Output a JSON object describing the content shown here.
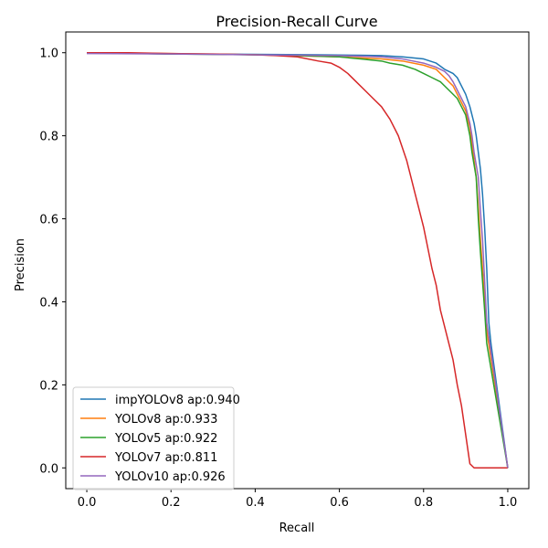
{
  "chart_data": {
    "type": "line",
    "title": "Precision-Recall Curve",
    "xlabel": "Recall",
    "ylabel": "Precision",
    "xlim": [
      -0.05,
      1.05
    ],
    "ylim": [
      -0.05,
      1.05
    ],
    "xticks": [
      0.0,
      0.2,
      0.4,
      0.6,
      0.8,
      1.0
    ],
    "xtick_labels": [
      "0.0",
      "0.2",
      "0.4",
      "0.6",
      "0.8",
      "1.0"
    ],
    "yticks": [
      0.0,
      0.2,
      0.4,
      0.6,
      0.8,
      1.0
    ],
    "ytick_labels": [
      "0.0",
      "0.2",
      "0.4",
      "0.6",
      "0.8",
      "1.0"
    ],
    "grid": false,
    "legend_position": "lower-left",
    "series": [
      {
        "name": "impYOLOv8 ap:0.940",
        "color": "#1f77b4",
        "x": [
          0.0,
          0.2,
          0.4,
          0.55,
          0.65,
          0.7,
          0.75,
          0.8,
          0.83,
          0.85,
          0.87,
          0.88,
          0.89,
          0.9,
          0.91,
          0.92,
          0.925,
          0.93,
          0.935,
          0.94,
          0.945,
          0.95,
          0.955,
          0.96,
          1.0
        ],
        "y": [
          1.0,
          0.997,
          0.996,
          0.995,
          0.994,
          0.993,
          0.99,
          0.985,
          0.975,
          0.96,
          0.95,
          0.94,
          0.92,
          0.9,
          0.87,
          0.83,
          0.8,
          0.76,
          0.72,
          0.66,
          0.58,
          0.48,
          0.35,
          0.3,
          0.0
        ]
      },
      {
        "name": "YOLOv8 ap:0.933",
        "color": "#ff7f0e",
        "x": [
          0.0,
          0.2,
          0.4,
          0.6,
          0.7,
          0.75,
          0.8,
          0.83,
          0.85,
          0.87,
          0.88,
          0.89,
          0.9,
          0.91,
          0.915,
          0.92,
          0.925,
          0.93,
          0.935,
          0.94,
          0.945,
          0.95,
          1.0
        ],
        "y": [
          1.0,
          0.998,
          0.995,
          0.99,
          0.985,
          0.98,
          0.97,
          0.96,
          0.94,
          0.92,
          0.9,
          0.88,
          0.86,
          0.82,
          0.78,
          0.74,
          0.7,
          0.63,
          0.55,
          0.48,
          0.4,
          0.33,
          0.0
        ]
      },
      {
        "name": "YOLOv5 ap:0.922",
        "color": "#2ca02c",
        "x": [
          0.0,
          0.2,
          0.4,
          0.5,
          0.6,
          0.65,
          0.7,
          0.72,
          0.75,
          0.78,
          0.8,
          0.82,
          0.84,
          0.86,
          0.88,
          0.89,
          0.9,
          0.91,
          0.915,
          0.92,
          0.925,
          0.93,
          0.935,
          0.94,
          0.945,
          0.95,
          1.0
        ],
        "y": [
          1.0,
          0.997,
          0.995,
          0.993,
          0.99,
          0.985,
          0.98,
          0.975,
          0.97,
          0.96,
          0.95,
          0.94,
          0.93,
          0.91,
          0.89,
          0.87,
          0.85,
          0.8,
          0.76,
          0.73,
          0.7,
          0.6,
          0.52,
          0.45,
          0.38,
          0.3,
          0.0
        ]
      },
      {
        "name": "YOLOv7 ap:0.811",
        "color": "#d62728",
        "x": [
          0.0,
          0.1,
          0.2,
          0.3,
          0.35,
          0.4,
          0.45,
          0.5,
          0.55,
          0.58,
          0.6,
          0.62,
          0.64,
          0.66,
          0.68,
          0.7,
          0.72,
          0.74,
          0.75,
          0.76,
          0.77,
          0.78,
          0.79,
          0.8,
          0.81,
          0.82,
          0.83,
          0.84,
          0.85,
          0.86,
          0.87,
          0.88,
          0.89,
          0.9,
          0.91,
          0.92,
          0.93,
          1.0
        ],
        "y": [
          1.0,
          1.0,
          0.998,
          0.997,
          0.996,
          0.995,
          0.993,
          0.99,
          0.98,
          0.975,
          0.965,
          0.95,
          0.93,
          0.91,
          0.89,
          0.87,
          0.84,
          0.8,
          0.77,
          0.74,
          0.7,
          0.66,
          0.62,
          0.58,
          0.53,
          0.48,
          0.44,
          0.38,
          0.34,
          0.3,
          0.26,
          0.2,
          0.15,
          0.08,
          0.01,
          0.0,
          0.0,
          0.0
        ]
      },
      {
        "name": "YOLOv10 ap:0.926",
        "color": "#9467bd",
        "x": [
          0.0,
          0.2,
          0.4,
          0.6,
          0.7,
          0.75,
          0.8,
          0.83,
          0.85,
          0.86,
          0.87,
          0.88,
          0.89,
          0.9,
          0.91,
          0.915,
          0.92,
          0.925,
          0.93,
          0.935,
          0.94,
          0.945,
          0.95,
          1.0
        ],
        "y": [
          0.998,
          0.997,
          0.995,
          0.993,
          0.99,
          0.985,
          0.975,
          0.965,
          0.955,
          0.945,
          0.93,
          0.91,
          0.89,
          0.87,
          0.83,
          0.8,
          0.76,
          0.73,
          0.7,
          0.62,
          0.55,
          0.45,
          0.35,
          0.0
        ]
      }
    ]
  }
}
